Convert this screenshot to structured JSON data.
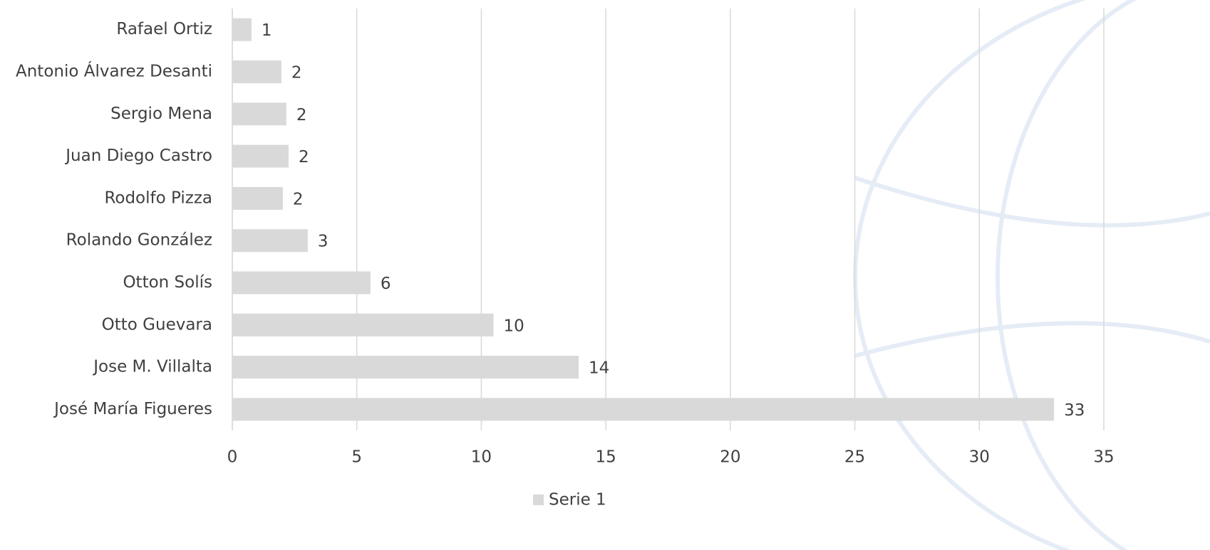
{
  "chart_data": {
    "type": "hbar",
    "categories": [
      "Rafael Ortiz",
      "Antonio Álvarez Desanti",
      "Sergio Mena",
      "Juan Diego Castro",
      "Rodolfo Pizza",
      "Rolando González",
      "Otton Solís",
      "Otto Guevara",
      "Jose M. Villalta",
      "José María Figueres"
    ],
    "series": [
      {
        "name": "Serie 1",
        "color": "#d9d9d9",
        "values": [
          0.77,
          1.97,
          2.17,
          2.26,
          2.03,
          3.03,
          5.55,
          10.49,
          13.91,
          33
        ],
        "value_labels": [
          "1",
          "2",
          "2",
          "2",
          "2",
          "3",
          "6",
          "10",
          "14",
          "33"
        ]
      }
    ],
    "xlim": [
      0,
      35
    ],
    "xticks": [
      0,
      5,
      10,
      15,
      20,
      25,
      30,
      35
    ],
    "grid": true,
    "legend": "bottom"
  }
}
